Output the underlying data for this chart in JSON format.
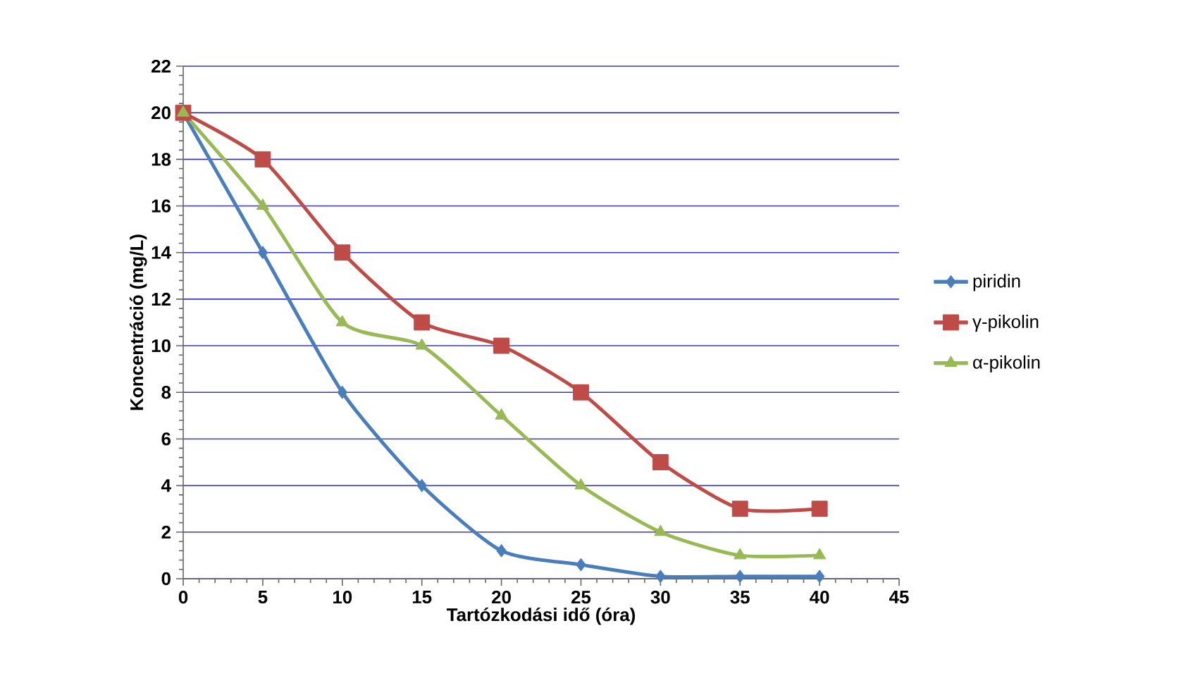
{
  "chart_data": {
    "type": "line",
    "xlabel": "Tartózkodási idő (óra)",
    "ylabel": "Koncentráció (mg/L)",
    "x": [
      0,
      5,
      10,
      15,
      20,
      25,
      30,
      35,
      40
    ],
    "series": [
      {
        "name": "piridin",
        "color": "#4a7ebb",
        "marker": "diamond",
        "values": [
          20,
          14,
          8,
          4,
          1.2,
          0.6,
          0.1,
          0.1,
          0.1
        ]
      },
      {
        "name": "γ-pikolin",
        "color": "#be4b48",
        "marker": "square",
        "values": [
          20,
          18,
          14,
          11,
          10,
          8,
          5,
          3,
          3
        ]
      },
      {
        "name": "α-pikolin",
        "color": "#98b954",
        "marker": "triangle",
        "values": [
          20,
          16,
          11,
          10,
          7,
          4,
          2,
          1,
          1
        ]
      }
    ],
    "xlim": [
      0,
      45
    ],
    "xticks": [
      0,
      5,
      10,
      15,
      20,
      25,
      30,
      35,
      40,
      45
    ],
    "ylim": [
      0,
      22
    ],
    "yticks": [
      0,
      2,
      4,
      6,
      8,
      10,
      12,
      14,
      16,
      18,
      20,
      22
    ],
    "grid": "y",
    "legend": "right",
    "line_style": "solid"
  }
}
